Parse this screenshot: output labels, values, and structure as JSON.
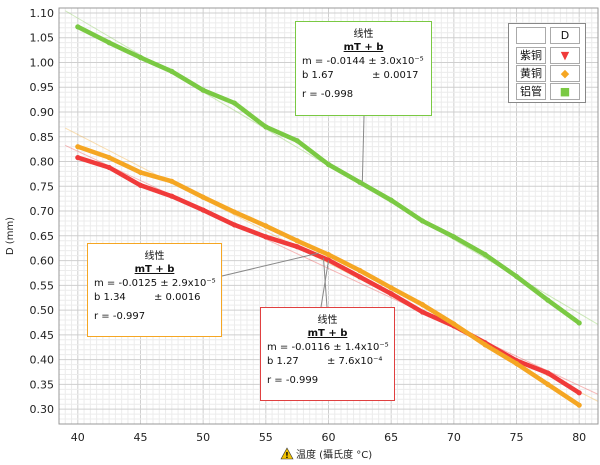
{
  "chart_data": {
    "type": "scatter",
    "xlabel": "温度 (攝氏度 °C)",
    "ylabel": "D (mm)",
    "xlim": [
      38.5,
      81.5
    ],
    "ylim": [
      0.27,
      1.11
    ],
    "xticks": [
      "40",
      "45",
      "50",
      "55",
      "60",
      "65",
      "70",
      "75",
      "80"
    ],
    "yticks": [
      "0.30",
      "0.35",
      "0.40",
      "0.45",
      "0.50",
      "0.55",
      "0.60",
      "0.65",
      "0.70",
      "0.75",
      "0.80",
      "0.85",
      "0.90",
      "0.95",
      "1.00",
      "1.05",
      "1.10"
    ],
    "grid": true,
    "legend_position": "top-right",
    "legend_header": "D",
    "series": [
      {
        "name": "紫铜",
        "color": "#f03a3a",
        "marker": "▼",
        "x": [
          40,
          42.5,
          45,
          47.5,
          50,
          52.5,
          55,
          57.5,
          60,
          62.5,
          65,
          67.5,
          70,
          72.5,
          75,
          77.5,
          80
        ],
        "y": [
          0.808,
          0.788,
          0.752,
          0.73,
          0.702,
          0.672,
          0.648,
          0.628,
          0.601,
          0.567,
          0.533,
          0.496,
          0.468,
          0.434,
          0.398,
          0.373,
          0.333
        ]
      },
      {
        "name": "黄铜",
        "color": "#f5a623",
        "marker": "◆",
        "x": [
          40,
          42.5,
          45,
          47.5,
          50,
          52.5,
          55,
          57.5,
          60,
          62.5,
          65,
          67.5,
          70,
          72.5,
          75,
          77.5,
          80
        ],
        "y": [
          0.83,
          0.808,
          0.778,
          0.76,
          0.728,
          0.698,
          0.67,
          0.64,
          0.612,
          0.58,
          0.545,
          0.511,
          0.472,
          0.43,
          0.392,
          0.35,
          0.308
        ]
      },
      {
        "name": "铝管",
        "color": "#7ac943",
        "marker": "■",
        "x": [
          40,
          42.5,
          45,
          47.5,
          50,
          52.5,
          55,
          57.5,
          60,
          62.5,
          65,
          67.5,
          70,
          72.5,
          75,
          77.5,
          80
        ],
        "y": [
          1.072,
          1.04,
          1.01,
          0.982,
          0.944,
          0.918,
          0.87,
          0.842,
          0.794,
          0.758,
          0.722,
          0.68,
          0.648,
          0.612,
          0.568,
          0.52,
          0.474
        ]
      }
    ],
    "fits": [
      {
        "series": "铝管",
        "border": "#7ac943",
        "title": "线性",
        "equation": "mT + b",
        "m": "m = -0.0144 ± 3.0x10⁻⁵",
        "b_label": "b  1.67",
        "b_err": "± 0.0017",
        "r": "r = -0.998"
      },
      {
        "series": "黄铜",
        "border": "#f5a623",
        "title": "线性",
        "equation": "mT + b",
        "m": "m = -0.0125 ± 2.9x10⁻⁵",
        "b_label": "b  1.34",
        "b_err": "± 0.0016",
        "r": "r = -0.997"
      },
      {
        "series": "紫铜",
        "border": "#e04040",
        "title": "线性",
        "equation": "mT + b",
        "m": "m = -0.0116 ± 1.4x10⁻⁵",
        "b_label": "b  1.27",
        "b_err": "± 7.6x10⁻⁴",
        "r": "r = -0.999"
      }
    ]
  },
  "icons": {
    "warning": "warning-icon"
  }
}
